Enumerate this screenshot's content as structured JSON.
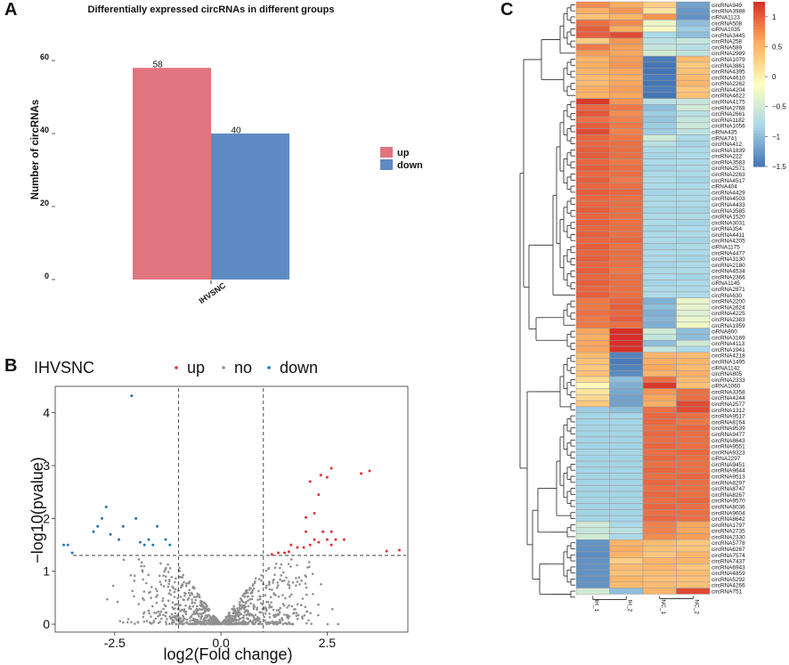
{
  "panels": {
    "a": "A",
    "b": "B",
    "c": "C"
  },
  "chart_data": [
    {
      "type": "bar",
      "title": "Differentially expressed circRNAs in different groups",
      "xlabel": "",
      "ylabel": "Number of circRNAs",
      "categories": [
        "IHVSNC"
      ],
      "series": [
        {
          "name": "up",
          "values": [
            58
          ],
          "color": "#e07480"
        },
        {
          "name": "down",
          "values": [
            40
          ],
          "color": "#5e8ac4"
        }
      ],
      "ylim": [
        0,
        62
      ],
      "yticks": [
        "0",
        "20",
        "40",
        "60"
      ],
      "legend": "right"
    },
    {
      "type": "scatter",
      "title": "IHVSNC",
      "xlabel": "log2(Fold change)",
      "ylabel": "−log10(pvalue)",
      "xlim": [
        -3.9,
        4.4
      ],
      "ylim": [
        -0.15,
        4.5
      ],
      "xticks": [
        "-2.5",
        "0.0",
        "2.5"
      ],
      "yticks": [
        "0",
        "1",
        "2",
        "3",
        "4"
      ],
      "thresholds": {
        "x": [
          -1,
          1
        ],
        "y": 1.3
      },
      "legend": [
        {
          "name": "up",
          "color": "#e3303a"
        },
        {
          "name": "no",
          "color": "#909090"
        },
        {
          "name": "down",
          "color": "#1f77b4"
        }
      ],
      "up_points": [
        [
          1.2,
          1.32
        ],
        [
          1.35,
          1.35
        ],
        [
          1.5,
          1.35
        ],
        [
          1.6,
          1.37
        ],
        [
          1.8,
          1.45
        ],
        [
          1.95,
          1.45
        ],
        [
          2.1,
          1.5
        ],
        [
          2.3,
          1.55
        ],
        [
          2.5,
          1.6
        ],
        [
          2.6,
          1.5
        ],
        [
          2.7,
          1.6
        ],
        [
          2.2,
          1.6
        ],
        [
          2.0,
          1.75
        ],
        [
          2.4,
          1.75
        ],
        [
          2.6,
          1.75
        ],
        [
          1.65,
          1.5
        ],
        [
          2.0,
          2.02
        ],
        [
          2.2,
          2.1
        ],
        [
          2.3,
          2.45
        ],
        [
          2.1,
          2.7
        ],
        [
          2.35,
          2.82
        ],
        [
          2.5,
          2.78
        ],
        [
          2.6,
          2.95
        ],
        [
          3.3,
          2.85
        ],
        [
          3.5,
          2.9
        ],
        [
          3.9,
          1.38
        ],
        [
          4.2,
          1.4
        ],
        [
          2.9,
          1.6
        ]
      ],
      "down_points": [
        [
          -3.7,
          1.5
        ],
        [
          -3.6,
          1.5
        ],
        [
          -3.5,
          1.35
        ],
        [
          -3.0,
          1.75
        ],
        [
          -2.9,
          1.85
        ],
        [
          -2.8,
          2.0
        ],
        [
          -2.6,
          1.7
        ],
        [
          -2.4,
          1.6
        ],
        [
          -2.3,
          1.85
        ],
        [
          -2.0,
          2.0
        ],
        [
          -1.9,
          1.55
        ],
        [
          -1.8,
          1.5
        ],
        [
          -1.7,
          1.6
        ],
        [
          -1.5,
          1.85
        ],
        [
          -1.3,
          1.6
        ],
        [
          -1.2,
          1.5
        ],
        [
          -2.1,
          4.32
        ],
        [
          -2.7,
          2.22
        ],
        [
          -1.6,
          1.5
        ]
      ],
      "no_points_generated": true
    },
    {
      "type": "heatmap",
      "columns": [
        "IH_1",
        "IH_2",
        "NC_1",
        "NC_2"
      ],
      "rows": [
        "circRNA949",
        "circRNA3988",
        "ciRNA1123",
        "circRNA508",
        "ciRNA1035",
        "circRNA3445",
        "circRNA258",
        "circRNA589",
        "circRNA2989",
        "circRNA1079",
        "circRNA3861",
        "circRNA4395",
        "circRNA4610",
        "circRNA2262",
        "circRNA4204",
        "circRNA4622",
        "circRNA4175",
        "circRNA2768",
        "circRNA2661",
        "circRNA1182",
        "circRNA1056",
        "ciRNA435",
        "ciRNA741",
        "circRNA412",
        "circRNA1839",
        "circRNA222",
        "circRNA3583",
        "circRNA2571",
        "circRNA2263",
        "circRNA4517",
        "ciRNA404",
        "circRNA4429",
        "circRNA4503",
        "circRNA4433",
        "circRNA3585",
        "circRNA1520",
        "circRNA3031",
        "circRNA354",
        "circRNA4411",
        "circRNA4205",
        "ciRNA1175",
        "circRNA4477",
        "circRNA3130",
        "circRNA2180",
        "circRNA4534",
        "circRNA2366",
        "ciRNA1145",
        "circRNA2871",
        "circRNA630",
        "circRNA2200",
        "circRNA2624",
        "circRNA4225",
        "circRNA2383",
        "circRNA1959",
        "ciRNA800",
        "circRNA3169",
        "circRNA4113",
        "circRNA1941",
        "circRNA4218",
        "circRNA1495",
        "ciRNA1142",
        "circRNA805",
        "circRNA2333",
        "ciRNA1060",
        "circRNA3358",
        "circRNA4244",
        "circRNA2577",
        "circRNA1312",
        "circRNA9517",
        "circRNA8164",
        "circRNA9539",
        "circRNA9477",
        "circRNA8643",
        "circRNA9551",
        "circRNA9323",
        "ciRNA2297",
        "circRNA9451",
        "circRNA9644",
        "circRNA9513",
        "circRNA8297",
        "circRNA8747",
        "circRNA8267",
        "circRNA9570",
        "circRNA8036",
        "circRNA9604",
        "circRNA8642",
        "circRNA1797",
        "circRNA2735",
        "circRNA2330",
        "circRNA5778",
        "circRNA6267",
        "circRNA7574",
        "circRNA7437",
        "circRNA6943",
        "circRNA4859",
        "circRNA5292",
        "circRNA4266",
        "circRNA751"
      ],
      "values": [
        [
          0.75,
          0.55,
          0.3,
          -1.2
        ],
        [
          0.55,
          0.7,
          0.1,
          -1.25
        ],
        [
          0.4,
          0.5,
          0.7,
          -1.3
        ],
        [
          0.9,
          0.75,
          -0.3,
          -1.0
        ],
        [
          1.0,
          0.55,
          -0.2,
          -0.9
        ],
        [
          1.0,
          1.1,
          -0.8,
          -1.0
        ],
        [
          0.3,
          0.7,
          -0.7,
          -0.6
        ],
        [
          0.85,
          0.65,
          -0.6,
          -0.7
        ],
        [
          0.65,
          0.6,
          -0.5,
          -0.65
        ],
        [
          0.5,
          0.65,
          -1.45,
          0.45
        ],
        [
          0.55,
          0.7,
          -1.5,
          0.35
        ],
        [
          0.5,
          0.6,
          -1.5,
          0.4
        ],
        [
          0.45,
          0.55,
          -1.45,
          0.45
        ],
        [
          0.45,
          0.6,
          -1.5,
          0.5
        ],
        [
          0.55,
          0.65,
          -1.45,
          0.35
        ],
        [
          0.5,
          0.6,
          -1.5,
          0.4
        ],
        [
          1.2,
          0.7,
          -0.7,
          -0.6
        ],
        [
          0.95,
          0.85,
          -1.0,
          -0.5
        ],
        [
          1.05,
          0.75,
          -0.9,
          -0.7
        ],
        [
          0.9,
          0.8,
          -0.95,
          -0.6
        ],
        [
          1.0,
          0.85,
          -0.9,
          -0.55
        ],
        [
          1.1,
          0.8,
          -0.9,
          -0.65
        ],
        [
          0.95,
          0.85,
          -0.5,
          -0.8
        ],
        [
          0.95,
          0.9,
          -0.7,
          -0.85
        ],
        [
          1.0,
          0.9,
          -0.8,
          -0.8
        ],
        [
          1.0,
          0.9,
          -0.85,
          -0.8
        ],
        [
          0.95,
          0.85,
          -0.8,
          -0.8
        ],
        [
          1.0,
          0.9,
          -0.85,
          -0.8
        ],
        [
          0.95,
          0.9,
          -0.8,
          -0.8
        ],
        [
          1.0,
          0.85,
          -0.8,
          -0.85
        ],
        [
          0.95,
          0.9,
          -0.8,
          -0.8
        ],
        [
          1.0,
          0.95,
          -0.85,
          -0.8
        ],
        [
          0.95,
          0.9,
          -0.8,
          -0.8
        ],
        [
          0.95,
          0.9,
          -0.8,
          -0.8
        ],
        [
          1.0,
          0.9,
          -0.85,
          -0.85
        ],
        [
          0.95,
          0.9,
          -0.8,
          -0.8
        ],
        [
          1.0,
          0.9,
          -0.8,
          -0.85
        ],
        [
          0.95,
          0.9,
          -0.85,
          -0.8
        ],
        [
          1.0,
          0.9,
          -0.8,
          -0.8
        ],
        [
          0.95,
          0.95,
          -0.8,
          -0.85
        ],
        [
          1.0,
          0.9,
          -0.85,
          -0.8
        ],
        [
          0.95,
          0.9,
          -0.8,
          -0.8
        ],
        [
          1.0,
          0.9,
          -0.8,
          -0.85
        ],
        [
          0.95,
          0.9,
          -0.85,
          -0.8
        ],
        [
          1.0,
          0.85,
          -0.8,
          -0.8
        ],
        [
          0.95,
          0.9,
          -0.8,
          -0.85
        ],
        [
          1.0,
          0.9,
          -0.85,
          -0.8
        ],
        [
          0.95,
          0.9,
          -0.8,
          -0.8
        ],
        [
          1.0,
          0.9,
          -0.8,
          -0.8
        ],
        [
          0.85,
          0.95,
          -1.1,
          -0.3
        ],
        [
          0.85,
          1.0,
          -1.0,
          -0.35
        ],
        [
          0.9,
          0.95,
          -1.1,
          -0.4
        ],
        [
          0.85,
          1.0,
          -1.05,
          -0.3
        ],
        [
          0.85,
          0.9,
          -1.1,
          -0.25
        ],
        [
          0.6,
          1.4,
          -0.5,
          -1.0
        ],
        [
          0.55,
          1.5,
          -0.6,
          -1.0
        ],
        [
          0.6,
          1.35,
          -1.0,
          -0.5
        ],
        [
          0.6,
          1.35,
          -0.6,
          -0.8
        ],
        [
          0.45,
          -1.4,
          0.5,
          0.45
        ],
        [
          0.4,
          -1.45,
          0.55,
          0.5
        ],
        [
          0.35,
          -1.4,
          0.6,
          0.45
        ],
        [
          0.4,
          -1.35,
          0.5,
          0.55
        ],
        [
          0.2,
          -1.0,
          0.9,
          0.45
        ],
        [
          -0.1,
          -1.1,
          1.2,
          0.4
        ],
        [
          0.1,
          -1.15,
          0.7,
          0.9
        ],
        [
          0.2,
          -1.2,
          0.6,
          0.9
        ],
        [
          0.35,
          -1.2,
          0.55,
          1.1
        ],
        [
          -0.9,
          -1.0,
          0.9,
          1.1
        ],
        [
          -0.85,
          -0.85,
          0.95,
          0.9
        ],
        [
          -0.85,
          -0.85,
          0.95,
          0.85
        ],
        [
          -0.85,
          -0.85,
          0.9,
          0.95
        ],
        [
          -0.85,
          -0.85,
          0.95,
          0.9
        ],
        [
          -0.85,
          -0.85,
          0.9,
          0.9
        ],
        [
          -0.85,
          -0.85,
          0.95,
          0.9
        ],
        [
          -0.85,
          -0.85,
          0.9,
          0.95
        ],
        [
          -0.85,
          -0.85,
          0.95,
          0.9
        ],
        [
          -0.85,
          -0.85,
          0.9,
          0.9
        ],
        [
          -0.85,
          -0.85,
          0.95,
          0.9
        ],
        [
          -0.85,
          -0.85,
          0.9,
          0.95
        ],
        [
          -0.85,
          -0.85,
          0.95,
          0.9
        ],
        [
          -0.85,
          -0.85,
          0.9,
          0.9
        ],
        [
          -0.85,
          -0.85,
          0.95,
          0.9
        ],
        [
          -0.85,
          -0.85,
          0.9,
          0.95
        ],
        [
          -0.85,
          -0.85,
          0.95,
          0.9
        ],
        [
          -0.85,
          -0.85,
          0.9,
          0.9
        ],
        [
          -0.85,
          -0.85,
          0.95,
          0.9
        ],
        [
          -0.5,
          -0.8,
          0.8,
          0.6
        ],
        [
          -0.6,
          -0.7,
          0.8,
          0.6
        ],
        [
          -0.5,
          -0.8,
          0.75,
          0.65
        ],
        [
          -1.3,
          0.5,
          0.45,
          0.35
        ],
        [
          -1.3,
          0.55,
          0.4,
          0.35
        ],
        [
          -1.35,
          0.5,
          0.35,
          0.5
        ],
        [
          -1.3,
          0.3,
          0.5,
          0.5
        ],
        [
          -1.3,
          0.45,
          0.5,
          0.35
        ],
        [
          -1.3,
          0.4,
          0.45,
          0.45
        ],
        [
          -1.3,
          0.5,
          0.4,
          0.4
        ],
        [
          -1.3,
          0.45,
          0.45,
          0.4
        ],
        [
          -0.5,
          -1.0,
          0.5,
          1.1
        ],
        [
          -0.9,
          -0.6,
          0.2,
          1.2
        ]
      ],
      "color_scale": {
        "min": -1.5,
        "max": 1.25,
        "colors": [
          "#4575b4",
          "#abd9e9",
          "#ffffbf",
          "#fdae61",
          "#d73027"
        ]
      },
      "legend_ticks": [
        "1",
        "0.5",
        "0",
        "−0.5",
        "−1",
        "−1.5"
      ]
    }
  ]
}
